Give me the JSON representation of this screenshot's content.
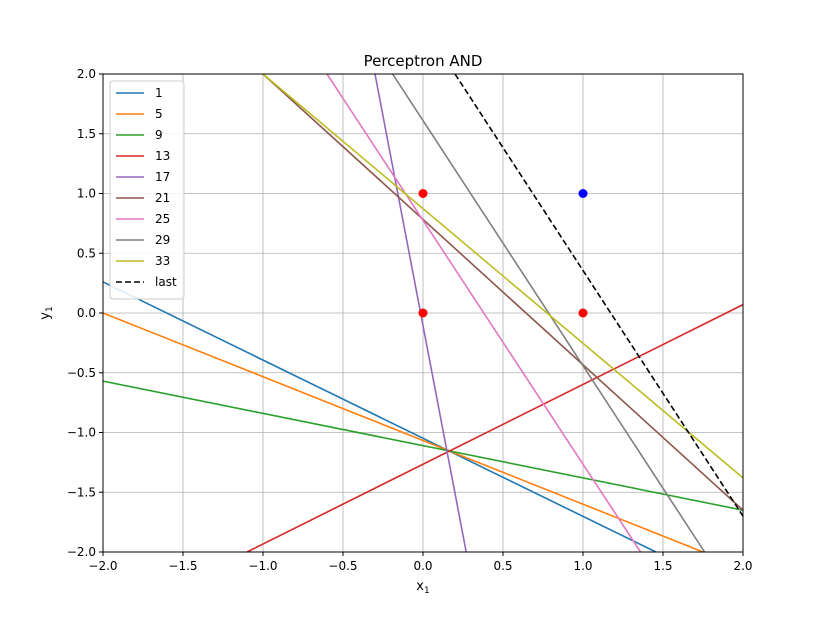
{
  "chart_data": {
    "type": "line",
    "title": "Perceptron AND",
    "xlabel": "x",
    "xlabel_sub": "1",
    "ylabel": "y",
    "ylabel_sub": "1",
    "xlim": [
      -2.0,
      2.0
    ],
    "ylim": [
      -2.0,
      2.0
    ],
    "x_ticks": [
      -2.0,
      -1.5,
      -1.0,
      -0.5,
      0.0,
      0.5,
      1.0,
      1.5,
      2.0
    ],
    "y_ticks": [
      -2.0,
      -1.5,
      -1.0,
      -0.5,
      0.0,
      0.5,
      1.0,
      1.5,
      2.0
    ],
    "x_tick_labels": [
      "−2.0",
      "−1.5",
      "−1.0",
      "−0.5",
      "0.0",
      "0.5",
      "1.0",
      "1.5",
      "2.0"
    ],
    "y_tick_labels": [
      "−2.0",
      "−1.5",
      "−1.0",
      "−0.5",
      "0.0",
      "0.5",
      "1.0",
      "1.5",
      "2.0"
    ],
    "grid": true,
    "legend_position": "upper-left",
    "series": [
      {
        "name": "1",
        "color": "#1f77b4",
        "dash": "solid",
        "x": [
          -2.0,
          1.456
        ],
        "y": [
          0.26,
          -2.0
        ]
      },
      {
        "name": "5",
        "color": "#ff7f0e",
        "dash": "solid",
        "x": [
          -2.0,
          1.75
        ],
        "y": [
          0.0,
          -2.0
        ]
      },
      {
        "name": "9",
        "color": "#2ca02c",
        "dash": "solid",
        "x": [
          -2.0,
          2.0
        ],
        "y": [
          -0.57,
          -1.65
        ]
      },
      {
        "name": "13",
        "color": "#d62728",
        "dash": "solid",
        "x": [
          -1.1,
          2.0
        ],
        "y": [
          -2.0,
          0.07
        ]
      },
      {
        "name": "17",
        "color": "#9467bd",
        "dash": "solid",
        "x": [
          -0.3,
          0.27
        ],
        "y": [
          2.0,
          -2.0
        ]
      },
      {
        "name": "21",
        "color": "#8c564b",
        "dash": "solid",
        "x": [
          -1.0,
          2.0
        ],
        "y": [
          2.0,
          -1.65
        ]
      },
      {
        "name": "25",
        "color": "#e377c2",
        "dash": "solid",
        "x": [
          -0.6,
          1.36
        ],
        "y": [
          2.0,
          -2.0
        ]
      },
      {
        "name": "29",
        "color": "#7f7f7f",
        "dash": "solid",
        "x": [
          -0.19,
          1.76
        ],
        "y": [
          2.0,
          -2.0
        ]
      },
      {
        "name": "33",
        "color": "#bcbd22",
        "dash": "solid",
        "x": [
          -1.0,
          2.0
        ],
        "y": [
          2.0,
          -1.38
        ]
      },
      {
        "name": "last",
        "color": "#000000",
        "dash": "dashed",
        "x": [
          0.2,
          2.0
        ],
        "y": [
          2.0,
          -1.7
        ]
      }
    ],
    "points": [
      {
        "x": 0,
        "y": 0,
        "color": "#ff0000"
      },
      {
        "x": 0,
        "y": 1,
        "color": "#ff0000"
      },
      {
        "x": 1,
        "y": 0,
        "color": "#ff0000"
      },
      {
        "x": 1,
        "y": 1,
        "color": "#0000ff"
      }
    ]
  }
}
